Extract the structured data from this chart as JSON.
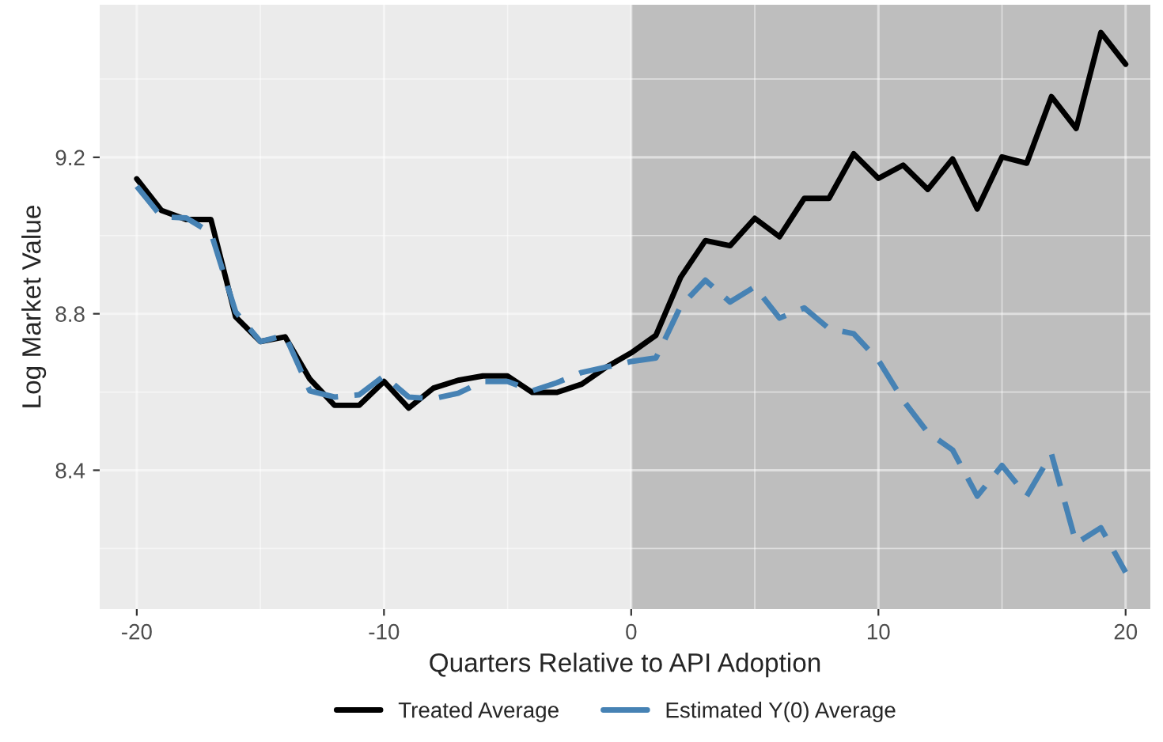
{
  "chart_data": {
    "type": "line",
    "xlabel": "Quarters Relative to API Adoption",
    "ylabel": "Log Market Value",
    "x": [
      -20,
      -19,
      -18,
      -17,
      -16,
      -15,
      -14,
      -13,
      -12,
      -11,
      -10,
      -9,
      -8,
      -7,
      -6,
      -5,
      -4,
      -3,
      -2,
      -1,
      0,
      1,
      2,
      3,
      4,
      5,
      6,
      7,
      8,
      9,
      10,
      11,
      12,
      13,
      14,
      15,
      16,
      17,
      18,
      19,
      20
    ],
    "series": [
      {
        "name": "Treated Average",
        "color": "#000000",
        "line_style": "solid",
        "values": [
          9.145,
          9.064,
          9.041,
          9.041,
          8.792,
          8.729,
          8.741,
          8.633,
          8.566,
          8.566,
          8.627,
          8.559,
          8.61,
          8.63,
          8.641,
          8.641,
          8.599,
          8.599,
          8.62,
          8.664,
          8.7,
          8.745,
          8.893,
          8.987,
          8.974,
          9.044,
          8.997,
          9.095,
          9.095,
          9.209,
          9.146,
          9.18,
          9.118,
          9.196,
          9.068,
          9.201,
          9.185,
          9.355,
          9.274,
          9.519,
          9.438
        ]
      },
      {
        "name": "Estimated Y(0) Average",
        "color": "#4682b4",
        "line_style": "dashed",
        "values": [
          9.126,
          9.048,
          9.045,
          9.007,
          8.805,
          8.729,
          8.745,
          8.603,
          8.587,
          8.593,
          8.641,
          8.587,
          8.583,
          8.597,
          8.627,
          8.627,
          8.603,
          8.624,
          8.65,
          8.664,
          8.678,
          8.687,
          8.819,
          8.886,
          8.83,
          8.869,
          8.789,
          8.815,
          8.762,
          8.749,
          8.681,
          8.579,
          8.496,
          8.452,
          8.334,
          8.412,
          8.334,
          8.442,
          8.213,
          8.253,
          8.139
        ]
      }
    ],
    "xlim": [
      -21.5,
      21
    ],
    "ylim": [
      8.045,
      9.59
    ],
    "xticks": [
      -20,
      {
        "value": -15,
        "label": null
      },
      -10,
      {
        "value": -5,
        "label": null
      },
      0,
      {
        "value": 5,
        "label": null
      },
      10,
      {
        "value": 15,
        "label": null
      },
      20
    ],
    "yticks": [
      {
        "value": 8.2,
        "label": null
      },
      8.4,
      {
        "value": 8.6,
        "label": null
      },
      8.8,
      {
        "value": 9.0,
        "label": null
      },
      9.2,
      {
        "value": 9.4,
        "label": null
      }
    ],
    "bands": [
      {
        "axis": "x",
        "from": 0,
        "to": 21,
        "label": null,
        "color": "#bebebe"
      }
    ],
    "grid": true,
    "legend": "bottom"
  }
}
